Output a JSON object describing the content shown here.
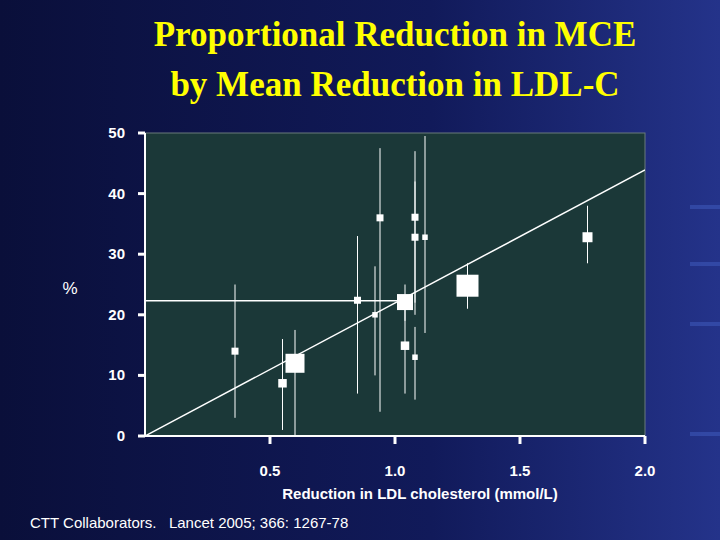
{
  "chart_data": {
    "type": "scatter",
    "title": [
      "Proportional Reduction in MCE",
      "by Mean Reduction in LDL-C"
    ],
    "x_label": "Reduction in LDL cholesterol (mmol/L)",
    "y_label": "%",
    "source": "CTT Collaborators.   Lancet 2005; 366: 1267-78",
    "xlim": [
      0,
      2.0
    ],
    "xticks": [
      0.5,
      {
        "value": 1.0,
        "label": "1.0"
      },
      1.5,
      {
        "value": 2.0,
        "label": "2.0"
      }
    ],
    "ylim": [
      0,
      50
    ],
    "yticks": [
      0,
      10,
      20,
      30,
      40,
      50
    ],
    "grid": false,
    "series": [
      {
        "type": "scatter",
        "marker": "square",
        "color": "#ffffff",
        "x": [
          0.36,
          0.55,
          0.6,
          0.85,
          0.92,
          0.94,
          1.04,
          1.04,
          1.08,
          1.08,
          1.08,
          1.12,
          1.29,
          1.77
        ],
        "values": [
          14.0,
          8.7,
          12.0,
          22.4,
          20.0,
          36.0,
          22.1,
          14.9,
          36.1,
          32.8,
          13.0,
          32.8,
          24.8,
          32.8
        ],
        "lower": [
          3.0,
          1.0,
          -2.0,
          7.0,
          10.0,
          4.0,
          19.0,
          7.0,
          22.0,
          20.0,
          6.0,
          17.0,
          21.0,
          28.5
        ],
        "upper": [
          25.0,
          16.0,
          17.5,
          33.0,
          28.0,
          47.5,
          25.0,
          23.0,
          47.0,
          42.0,
          18.0,
          49.5,
          28.5,
          38.0
        ],
        "sizes": [
          2,
          3,
          10,
          2,
          1,
          2,
          8,
          3,
          2,
          2,
          1,
          1,
          12,
          4
        ]
      },
      {
        "type": "line",
        "color": "#ffffff",
        "line_style": "solid",
        "x": [
          0,
          2.0
        ],
        "values": [
          0,
          43.9
        ]
      },
      {
        "type": "line",
        "color": "#ffffff",
        "line_style": "solid",
        "x": [
          0,
          1.04
        ],
        "values": [
          22.3,
          22.3
        ]
      }
    ]
  }
}
